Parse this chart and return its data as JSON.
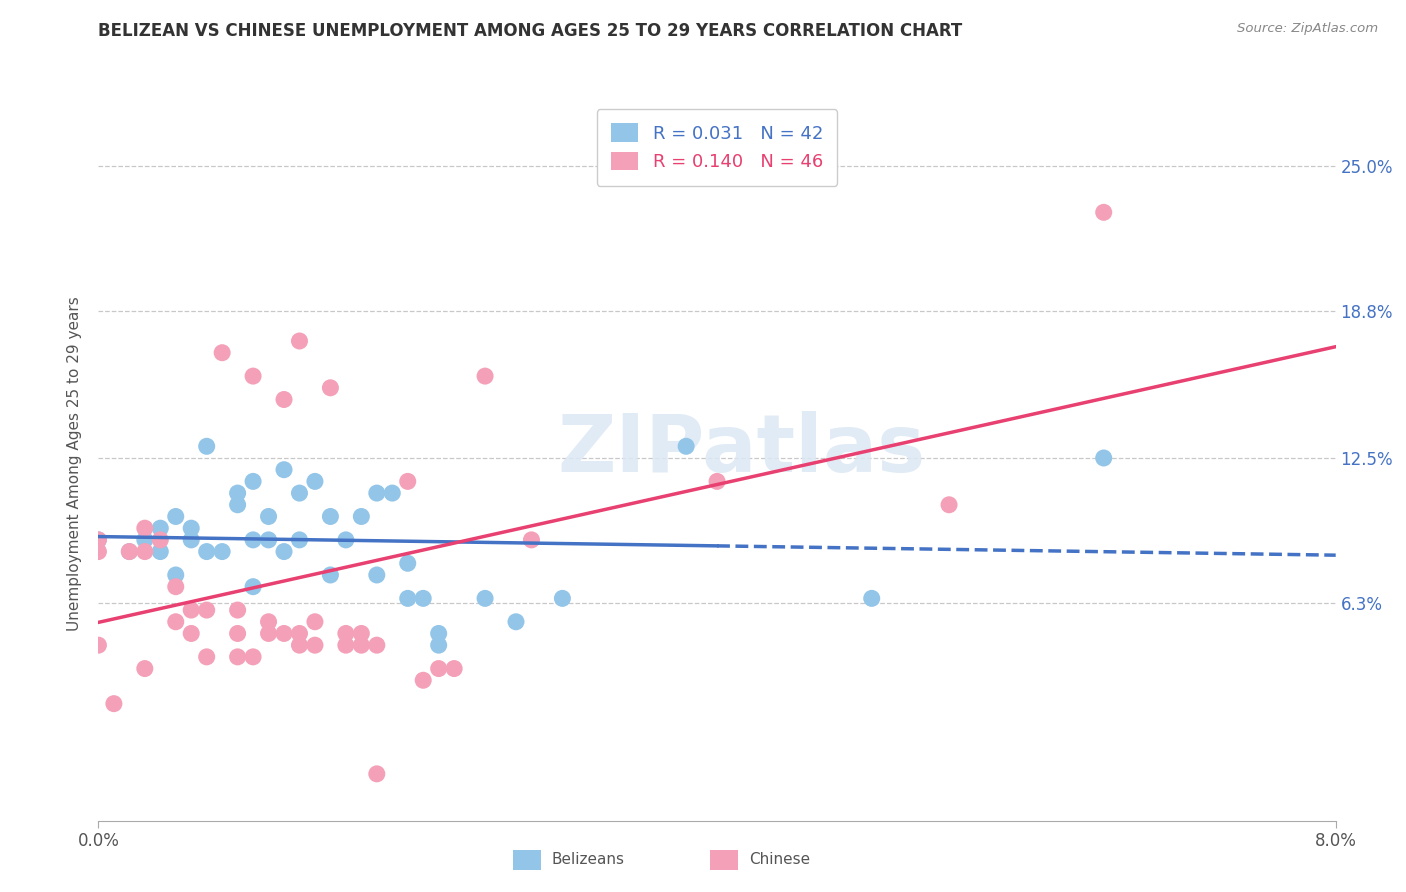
{
  "title": "BELIZEAN VS CHINESE UNEMPLOYMENT AMONG AGES 25 TO 29 YEARS CORRELATION CHART",
  "source": "Source: ZipAtlas.com",
  "ylabel": "Unemployment Among Ages 25 to 29 years",
  "xlim": [
    0.0,
    0.08
  ],
  "ylim": [
    -0.03,
    0.275
  ],
  "ytick_labels": [
    "6.3%",
    "12.5%",
    "18.8%",
    "25.0%"
  ],
  "ytick_values": [
    0.063,
    0.125,
    0.188,
    0.25
  ],
  "belizean_R": 0.031,
  "belizean_N": 42,
  "chinese_R": 0.14,
  "chinese_N": 46,
  "belizean_color": "#92C5E8",
  "chinese_color": "#F4A0B8",
  "trend_belizean_color": "#4472C4",
  "trend_chinese_color": "#E84070",
  "belizean_x": [
    0.0,
    0.002,
    0.003,
    0.004,
    0.004,
    0.005,
    0.005,
    0.006,
    0.006,
    0.007,
    0.007,
    0.008,
    0.009,
    0.009,
    0.01,
    0.01,
    0.01,
    0.011,
    0.011,
    0.012,
    0.012,
    0.013,
    0.013,
    0.014,
    0.015,
    0.015,
    0.016,
    0.017,
    0.018,
    0.018,
    0.019,
    0.02,
    0.02,
    0.021,
    0.022,
    0.022,
    0.025,
    0.027,
    0.03,
    0.038,
    0.05,
    0.065
  ],
  "belizean_y": [
    0.09,
    0.085,
    0.09,
    0.085,
    0.095,
    0.075,
    0.1,
    0.09,
    0.095,
    0.085,
    0.13,
    0.085,
    0.105,
    0.11,
    0.07,
    0.09,
    0.115,
    0.09,
    0.1,
    0.085,
    0.12,
    0.09,
    0.11,
    0.115,
    0.075,
    0.1,
    0.09,
    0.1,
    0.075,
    0.11,
    0.11,
    0.08,
    0.065,
    0.065,
    0.045,
    0.05,
    0.065,
    0.055,
    0.065,
    0.13,
    0.065,
    0.125
  ],
  "chinese_x": [
    0.0,
    0.0,
    0.0,
    0.001,
    0.002,
    0.003,
    0.003,
    0.003,
    0.004,
    0.005,
    0.005,
    0.006,
    0.006,
    0.007,
    0.007,
    0.008,
    0.009,
    0.009,
    0.009,
    0.01,
    0.01,
    0.011,
    0.011,
    0.012,
    0.012,
    0.013,
    0.013,
    0.013,
    0.014,
    0.014,
    0.015,
    0.016,
    0.016,
    0.017,
    0.017,
    0.018,
    0.018,
    0.02,
    0.021,
    0.022,
    0.023,
    0.025,
    0.028,
    0.04,
    0.055,
    0.065
  ],
  "chinese_y": [
    0.085,
    0.09,
    0.045,
    0.02,
    0.085,
    0.035,
    0.085,
    0.095,
    0.09,
    0.055,
    0.07,
    0.05,
    0.06,
    0.04,
    0.06,
    0.17,
    0.04,
    0.05,
    0.06,
    0.04,
    0.16,
    0.05,
    0.055,
    0.05,
    0.15,
    0.045,
    0.05,
    0.175,
    0.045,
    0.055,
    0.155,
    0.045,
    0.05,
    0.045,
    0.05,
    -0.01,
    0.045,
    0.115,
    0.03,
    0.035,
    0.035,
    0.16,
    0.09,
    0.115,
    0.105,
    0.23
  ]
}
